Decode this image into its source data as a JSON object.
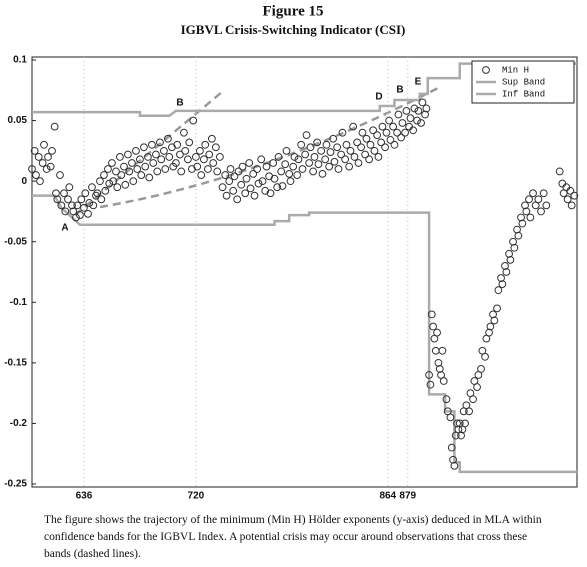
{
  "chart_data": {
    "type": "scatter",
    "title": "Figure 15",
    "subtitle": "IGBVL Crisis-Switching Indicator (CSI)",
    "caption": "The figure shows the trajectory of the minimum (Min H) Hölder exponents (y-axis) deduced in MLA within confidence bands for the IGBVL Index. A potential crisis may occur around observations that cross these bands (dashed lines).",
    "annotations": [
      "A",
      "B",
      "D",
      "B",
      "E"
    ],
    "xlim": [
      597,
      1006
    ],
    "xticks": [
      636,
      720,
      864,
      879
    ],
    "ylim": [
      -0.25,
      0.1
    ],
    "yticks": [
      0.1,
      0.05,
      0,
      -0.05,
      -0.1,
      -0.15,
      -0.2,
      -0.25
    ],
    "legend": "upper right",
    "series": [
      {
        "name": "Min H",
        "type": "scatter",
        "color": "#333333",
        "x": [
          597,
          599,
          600,
          602,
          603,
          605,
          606,
          608,
          609,
          611,
          612,
          614,
          615,
          616,
          618,
          619,
          621,
          622,
          624,
          625,
          627,
          628,
          630,
          631,
          633,
          634,
          636,
          637,
          639,
          640,
          642,
          643,
          645,
          646,
          648,
          649,
          651,
          652,
          654,
          655,
          657,
          658,
          660,
          661,
          663,
          664,
          666,
          667,
          669,
          670,
          672,
          673,
          675,
          676,
          678,
          679,
          681,
          682,
          684,
          685,
          687,
          688,
          690,
          691,
          693,
          694,
          696,
          697,
          699,
          700,
          702,
          703,
          705,
          706,
          708,
          709,
          711,
          712,
          714,
          715,
          717,
          718,
          720,
          721,
          723,
          724,
          726,
          727,
          729,
          730,
          732,
          733,
          735,
          736,
          738,
          740,
          742,
          743,
          745,
          746,
          748,
          749,
          751,
          752,
          754,
          755,
          757,
          758,
          760,
          761,
          763,
          764,
          766,
          767,
          769,
          770,
          772,
          773,
          775,
          776,
          778,
          779,
          781,
          782,
          784,
          785,
          787,
          788,
          790,
          791,
          793,
          794,
          796,
          797,
          799,
          800,
          802,
          803,
          805,
          806,
          808,
          809,
          811,
          812,
          814,
          815,
          817,
          818,
          820,
          821,
          823,
          824,
          826,
          827,
          829,
          830,
          832,
          833,
          835,
          836,
          838,
          839,
          841,
          842,
          844,
          845,
          847,
          848,
          850,
          851,
          853,
          854,
          856,
          857,
          859,
          860,
          862,
          863,
          865,
          866,
          868,
          869,
          871,
          872,
          874,
          875,
          877,
          878,
          880,
          881,
          883,
          884,
          886,
          887,
          889,
          890,
          892,
          893,
          895,
          896,
          897,
          898,
          899,
          900,
          901,
          902,
          903,
          904,
          905,
          906,
          908,
          909,
          911,
          912,
          913,
          914,
          915,
          916,
          917,
          918,
          919,
          920,
          921,
          922,
          923,
          925,
          926,
          928,
          929,
          931,
          932,
          934,
          935,
          937,
          938,
          940,
          941,
          943,
          944,
          946,
          947,
          949,
          950,
          952,
          953,
          955,
          956,
          958,
          959,
          961,
          962,
          964,
          965,
          967,
          968,
          970,
          971,
          973,
          975,
          977,
          979,
          981,
          983,
          993,
          995,
          996,
          998,
          999,
          1001,
          1002,
          1004
        ],
        "values": [
          0.01,
          0.025,
          0.005,
          0.02,
          0.0,
          0.015,
          0.03,
          0.01,
          0.02,
          0.012,
          0.025,
          0.045,
          -0.01,
          -0.015,
          0.005,
          -0.02,
          -0.01,
          -0.025,
          -0.015,
          -0.005,
          -0.02,
          -0.025,
          -0.03,
          -0.02,
          -0.028,
          -0.015,
          -0.022,
          -0.01,
          -0.027,
          -0.018,
          -0.005,
          -0.02,
          -0.012,
          -0.01,
          0.0,
          -0.015,
          0.005,
          -0.008,
          0.01,
          -0.002,
          0.015,
          0.0,
          0.008,
          -0.005,
          0.02,
          0.005,
          0.012,
          -0.003,
          0.022,
          0.008,
          0.015,
          0.0,
          0.025,
          0.01,
          0.018,
          0.005,
          0.028,
          0.012,
          0.02,
          0.003,
          0.03,
          0.015,
          0.022,
          0.008,
          0.032,
          0.018,
          0.025,
          0.01,
          0.035,
          0.02,
          0.028,
          0.012,
          0.015,
          0.03,
          0.022,
          0.008,
          0.04,
          0.025,
          0.018,
          0.032,
          0.01,
          0.05,
          0.02,
          0.012,
          0.025,
          0.005,
          0.018,
          0.03,
          0.01,
          0.022,
          0.035,
          0.015,
          0.028,
          0.008,
          0.02,
          -0.005,
          0.005,
          -0.012,
          0.0,
          0.01,
          -0.008,
          0.004,
          -0.015,
          0.008,
          -0.003,
          0.012,
          -0.01,
          0.002,
          0.015,
          -0.006,
          0.006,
          -0.012,
          0.01,
          -0.002,
          0.018,
          0.0,
          -0.008,
          0.012,
          0.004,
          -0.01,
          0.015,
          0.002,
          -0.005,
          0.02,
          0.008,
          -0.004,
          0.014,
          0.025,
          0.006,
          0.0,
          0.012,
          0.02,
          0.005,
          0.018,
          0.03,
          0.01,
          0.022,
          0.038,
          0.015,
          0.028,
          0.008,
          0.02,
          0.032,
          0.014,
          0.025,
          0.006,
          0.018,
          0.03,
          0.012,
          0.024,
          0.035,
          0.016,
          0.028,
          0.01,
          0.022,
          0.04,
          0.018,
          0.03,
          0.012,
          0.025,
          0.045,
          0.02,
          0.032,
          0.015,
          0.028,
          0.04,
          0.022,
          0.035,
          0.018,
          0.03,
          0.042,
          0.025,
          0.038,
          0.02,
          0.032,
          0.045,
          0.028,
          0.04,
          0.05,
          0.034,
          0.045,
          0.03,
          0.04,
          0.055,
          0.036,
          0.048,
          0.04,
          0.058,
          0.045,
          0.052,
          0.042,
          0.06,
          0.05,
          0.058,
          0.048,
          0.065,
          0.055,
          0.06,
          -0.16,
          -0.168,
          -0.11,
          -0.12,
          -0.13,
          -0.14,
          -0.125,
          -0.15,
          -0.155,
          -0.16,
          -0.14,
          -0.165,
          -0.18,
          -0.19,
          -0.195,
          -0.22,
          -0.23,
          -0.235,
          -0.21,
          -0.2,
          -0.205,
          -0.2,
          -0.21,
          -0.205,
          -0.19,
          -0.2,
          -0.185,
          -0.19,
          -0.175,
          -0.18,
          -0.165,
          -0.17,
          -0.16,
          -0.155,
          -0.14,
          -0.145,
          -0.13,
          -0.125,
          -0.12,
          -0.11,
          -0.115,
          -0.105,
          -0.09,
          -0.08,
          -0.085,
          -0.07,
          -0.075,
          -0.06,
          -0.065,
          -0.05,
          -0.055,
          -0.04,
          -0.045,
          -0.03,
          -0.035,
          -0.02,
          -0.025,
          -0.015,
          -0.03,
          -0.01,
          -0.02,
          -0.015,
          -0.025,
          -0.01,
          -0.02,
          0.008,
          -0.002,
          -0.01,
          -0.005,
          -0.015,
          -0.008,
          -0.02,
          -0.012
        ]
      },
      {
        "name": "Sup Band",
        "type": "line",
        "color": "#aaaaaa",
        "x": [
          597,
          678,
          678,
          700,
          705,
          858,
          858,
          869,
          869,
          888,
          888,
          894,
          894,
          918,
          918,
          1006
        ],
        "values": [
          0.057,
          0.057,
          0.054,
          0.054,
          0.058,
          0.058,
          0.062,
          0.062,
          0.067,
          0.067,
          0.072,
          0.072,
          0.085,
          0.085,
          0.097,
          0.097
        ]
      },
      {
        "name": "Inf Band",
        "type": "line",
        "color": "#aaaaaa",
        "x": [
          597,
          614,
          619,
          625,
          633,
          779,
          779,
          790,
          790,
          805,
          805,
          895,
          895,
          907,
          907,
          914,
          914,
          918,
          918,
          1006
        ],
        "values": [
          -0.012,
          -0.012,
          -0.022,
          -0.028,
          -0.036,
          -0.036,
          -0.033,
          -0.033,
          -0.028,
          -0.028,
          -0.026,
          -0.026,
          -0.176,
          -0.176,
          -0.19,
          -0.19,
          -0.232,
          -0.232,
          -0.24,
          -0.24
        ]
      }
    ]
  }
}
